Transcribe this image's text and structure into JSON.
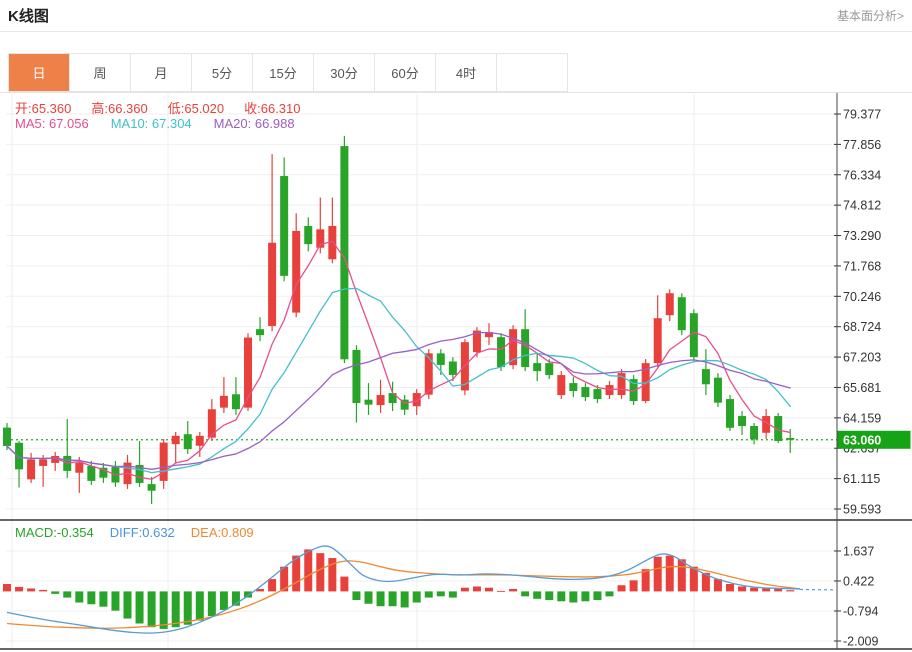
{
  "header": {
    "title": "K线图",
    "link": "基本面分析>"
  },
  "tabs": [
    {
      "key": "day",
      "label": "日",
      "active": true
    },
    {
      "key": "week",
      "label": "周",
      "active": false
    },
    {
      "key": "month",
      "label": "月",
      "active": false
    },
    {
      "key": "5min",
      "label": "5分",
      "active": false
    },
    {
      "key": "15min",
      "label": "15分",
      "active": false
    },
    {
      "key": "30min",
      "label": "30分",
      "active": false
    },
    {
      "key": "60min",
      "label": "60分",
      "active": false
    },
    {
      "key": "4hour",
      "label": "4时",
      "active": false
    }
  ],
  "overlays": {
    "ohlc": [
      {
        "key": "ohlc-open",
        "label": "开:",
        "value": "65.360"
      },
      {
        "key": "ohlc-high",
        "label": "高:",
        "value": "66.360"
      },
      {
        "key": "ohlc-low",
        "label": "低:",
        "value": "65.020"
      },
      {
        "key": "ohlc-close",
        "label": "收:",
        "value": "66.310"
      }
    ],
    "ma": [
      {
        "key": "ma5-label",
        "label": "MA5: ",
        "value": "67.056",
        "color": "#ea4d8c"
      },
      {
        "key": "ma10-label",
        "label": "MA10: ",
        "value": "67.304",
        "color": "#3fc0cb"
      },
      {
        "key": "ma20-label",
        "label": "MA20: ",
        "value": "66.988",
        "color": "#9a5fc5"
      }
    ],
    "macd": [
      {
        "key": "macd-value",
        "label": "MACD:",
        "value": "-0.354",
        "color": "#28a428"
      },
      {
        "key": "diff-value",
        "label": "DIFF:",
        "value": "0.632",
        "color": "#4a94d9"
      },
      {
        "key": "dea-value",
        "label": "DEA:",
        "value": "0.809",
        "color": "#ef8932"
      }
    ]
  },
  "colors": {
    "up_red": "#e8413c",
    "down_green": "#28a428",
    "badge_green": "#16a316",
    "dotted_line_green": "#2aa52a",
    "ma5_pink": "#ea4d8c",
    "ma10_cyan": "#43c0cd",
    "ma20_purple": "#9a5fc5",
    "diff_blue": "#5a9bd5",
    "dea_orange": "#ef8932",
    "tab_active_orange": "#ee8147",
    "axis_text": "#333333",
    "grid_light": "#efefef",
    "grid_vertical": "#ececec",
    "dark_line": "#333333"
  },
  "chart_data": {
    "type": "candlestick_with_macd",
    "title": "K线图",
    "price_axis": {
      "ticks": [
        "79.377",
        "77.856",
        "76.334",
        "74.812",
        "73.290",
        "71.768",
        "70.246",
        "68.724",
        "67.203",
        "65.681",
        "64.159",
        "62.637",
        "61.115",
        "59.593"
      ],
      "range": [
        59.593,
        79.377
      ],
      "current_price": "63.060",
      "current_price_value": 63.06
    },
    "macd_axis": {
      "ticks": [
        "1.637",
        "0.422",
        "-0.794",
        "-2.009"
      ],
      "range": [
        -2.6,
        2.3
      ]
    },
    "vertical_gridlines_x": [
      12,
      168,
      417,
      694
    ],
    "candles": [
      [
        63.67,
        62.75,
        62.55,
        63.9
      ],
      [
        62.91,
        61.58,
        60.67,
        63.0
      ],
      [
        61.08,
        62.08,
        60.9,
        62.4
      ],
      [
        61.75,
        62.08,
        60.7,
        62.3
      ],
      [
        61.9,
        62.25,
        61.5,
        62.45
      ],
      [
        62.25,
        61.5,
        61.15,
        64.1
      ],
      [
        61.41,
        61.91,
        60.4,
        62.2
      ],
      [
        61.75,
        61.0,
        60.8,
        62.0
      ],
      [
        61.66,
        61.16,
        60.9,
        61.9
      ],
      [
        61.7,
        60.92,
        60.7,
        62.0
      ],
      [
        60.84,
        61.92,
        60.6,
        62.3
      ],
      [
        61.8,
        60.9,
        60.7,
        63.0
      ],
      [
        60.84,
        60.51,
        59.84,
        61.2
      ],
      [
        61.0,
        62.92,
        60.6,
        63.1
      ],
      [
        62.84,
        63.26,
        61.9,
        63.45
      ],
      [
        63.34,
        62.59,
        62.35,
        64.0
      ],
      [
        62.76,
        63.26,
        62.2,
        63.45
      ],
      [
        63.17,
        64.59,
        63.0,
        65.1
      ],
      [
        64.67,
        65.26,
        64.4,
        66.2
      ],
      [
        65.34,
        64.59,
        64.3,
        66.2
      ],
      [
        64.67,
        68.18,
        64.5,
        68.4
      ],
      [
        68.6,
        68.3,
        68.0,
        69.2
      ],
      [
        68.76,
        72.93,
        68.5,
        77.37
      ],
      [
        76.27,
        71.27,
        71.0,
        77.2
      ],
      [
        69.43,
        73.52,
        69.2,
        74.4
      ],
      [
        73.77,
        72.86,
        72.5,
        74.2
      ],
      [
        72.68,
        73.6,
        72.4,
        75.19
      ],
      [
        72.1,
        73.77,
        71.9,
        75.19
      ],
      [
        77.77,
        67.09,
        66.9,
        78.28
      ],
      [
        67.56,
        64.9,
        63.92,
        67.8
      ],
      [
        65.07,
        64.82,
        64.3,
        65.9
      ],
      [
        64.8,
        65.3,
        64.4,
        66.07
      ],
      [
        65.4,
        64.9,
        64.5,
        65.97
      ],
      [
        65.07,
        64.57,
        64.3,
        65.3
      ],
      [
        64.74,
        65.4,
        64.3,
        65.6
      ],
      [
        65.32,
        67.39,
        65.1,
        67.6
      ],
      [
        67.39,
        66.81,
        66.3,
        67.6
      ],
      [
        66.98,
        66.31,
        66.0,
        67.2
      ],
      [
        65.53,
        67.95,
        65.3,
        68.1
      ],
      [
        67.45,
        68.53,
        67.2,
        68.7
      ],
      [
        68.2,
        68.45,
        67.8,
        68.9
      ],
      [
        68.2,
        66.7,
        66.5,
        68.4
      ],
      [
        66.8,
        68.6,
        66.6,
        68.8
      ],
      [
        68.6,
        66.7,
        66.5,
        69.6
      ],
      [
        66.9,
        66.5,
        66.0,
        67.4
      ],
      [
        66.9,
        66.3,
        66.1,
        67.1
      ],
      [
        65.3,
        66.3,
        65.1,
        66.5
      ],
      [
        65.9,
        65.5,
        65.2,
        66.2
      ],
      [
        65.7,
        65.2,
        65.0,
        65.9
      ],
      [
        65.6,
        65.1,
        64.9,
        65.8
      ],
      [
        65.3,
        65.8,
        65.1,
        66.0
      ],
      [
        65.3,
        66.4,
        65.1,
        66.6
      ],
      [
        66.1,
        65.0,
        64.8,
        66.3
      ],
      [
        65.0,
        66.9,
        64.9,
        67.1
      ],
      [
        66.9,
        69.15,
        66.7,
        70.3
      ],
      [
        69.3,
        70.4,
        69.0,
        70.6
      ],
      [
        70.2,
        68.55,
        68.3,
        70.4
      ],
      [
        69.4,
        67.2,
        67.0,
        69.6
      ],
      [
        66.6,
        65.84,
        65.3,
        67.6
      ],
      [
        66.17,
        64.92,
        64.7,
        66.4
      ],
      [
        65.1,
        63.66,
        63.5,
        65.3
      ],
      [
        64.25,
        63.75,
        63.3,
        64.5
      ],
      [
        63.75,
        63.08,
        62.83,
        63.9
      ],
      [
        63.41,
        64.25,
        63.1,
        64.6
      ],
      [
        64.25,
        63.0,
        62.9,
        64.4
      ],
      [
        63.15,
        63.06,
        62.4,
        63.6
      ]
    ],
    "ma_windows": [
      5,
      10,
      20
    ],
    "macd_hist": [
      0.3,
      0.18,
      0.12,
      0.06,
      -0.1,
      -0.25,
      -0.45,
      -0.52,
      -0.62,
      -0.78,
      -1.1,
      -1.3,
      -1.45,
      -1.52,
      -1.45,
      -1.35,
      -1.18,
      -1.0,
      -0.75,
      -0.58,
      -0.25,
      0.1,
      0.5,
      1.0,
      1.45,
      1.7,
      1.55,
      1.35,
      0.6,
      -0.35,
      -0.5,
      -0.6,
      -0.6,
      -0.65,
      -0.45,
      -0.25,
      -0.2,
      -0.25,
      0.15,
      0.2,
      0.15,
      0.02,
      0.1,
      -0.2,
      -0.3,
      -0.35,
      -0.4,
      -0.45,
      -0.4,
      -0.35,
      -0.2,
      0.25,
      0.45,
      0.9,
      1.4,
      1.45,
      1.3,
      1.0,
      0.75,
      0.5,
      0.3,
      0.2,
      0.15,
      0.12,
      0.1,
      0.05
    ],
    "diff_line": [
      [
        7,
        -0.85
      ],
      [
        43,
        -1.15
      ],
      [
        79,
        -1.35
      ],
      [
        114,
        -1.6
      ],
      [
        150,
        -1.72
      ],
      [
        174,
        -1.6
      ],
      [
        198,
        -1.3
      ],
      [
        222,
        -0.85
      ],
      [
        246,
        -0.25
      ],
      [
        270,
        0.5
      ],
      [
        294,
        1.3
      ],
      [
        317,
        1.8
      ],
      [
        329,
        1.87
      ],
      [
        341,
        1.5
      ],
      [
        353,
        1.0
      ],
      [
        365,
        0.55
      ],
      [
        389,
        0.35
      ],
      [
        413,
        0.55
      ],
      [
        436,
        0.72
      ],
      [
        460,
        0.65
      ],
      [
        484,
        0.72
      ],
      [
        508,
        0.68
      ],
      [
        531,
        0.6
      ],
      [
        555,
        0.5
      ],
      [
        579,
        0.48
      ],
      [
        603,
        0.55
      ],
      [
        626,
        0.8
      ],
      [
        650,
        1.35
      ],
      [
        662,
        1.55
      ],
      [
        674,
        1.45
      ],
      [
        686,
        1.1
      ],
      [
        709,
        0.6
      ],
      [
        733,
        0.3
      ],
      [
        757,
        0.15
      ],
      [
        781,
        0.12
      ],
      [
        800,
        0.1
      ]
    ],
    "dea_line": [
      [
        7,
        -1.3
      ],
      [
        43,
        -1.42
      ],
      [
        79,
        -1.48
      ],
      [
        114,
        -1.5
      ],
      [
        150,
        -1.42
      ],
      [
        186,
        -1.25
      ],
      [
        222,
        -0.95
      ],
      [
        258,
        -0.45
      ],
      [
        294,
        0.3
      ],
      [
        317,
        0.85
      ],
      [
        341,
        1.25
      ],
      [
        360,
        1.22
      ],
      [
        380,
        1.0
      ],
      [
        400,
        0.82
      ],
      [
        430,
        0.72
      ],
      [
        460,
        0.66
      ],
      [
        500,
        0.68
      ],
      [
        540,
        0.62
      ],
      [
        580,
        0.58
      ],
      [
        610,
        0.6
      ],
      [
        640,
        0.75
      ],
      [
        662,
        0.98
      ],
      [
        680,
        1.02
      ],
      [
        700,
        0.9
      ],
      [
        720,
        0.7
      ],
      [
        745,
        0.45
      ],
      [
        770,
        0.25
      ],
      [
        800,
        0.1
      ]
    ],
    "dotted_price_line": 63.06
  }
}
